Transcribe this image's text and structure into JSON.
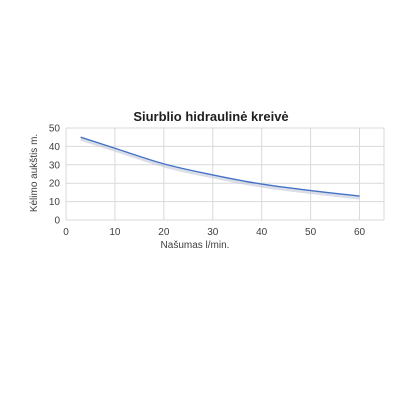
{
  "chart_data": {
    "type": "line",
    "title": "Siurblio hidraulinė kreivė",
    "xlabel": "Našumas l/min.",
    "ylabel": "Kėlimo aukštis m.",
    "xlim": [
      0,
      65
    ],
    "ylim": [
      0,
      50
    ],
    "x_ticks": [
      0,
      10,
      20,
      30,
      40,
      50,
      60
    ],
    "y_ticks": [
      0,
      10,
      20,
      30,
      40,
      50
    ],
    "grid": true,
    "series": [
      {
        "x": [
          3,
          10,
          20,
          30,
          40,
          50,
          60
        ],
        "values": [
          45,
          39,
          30.5,
          24.5,
          19.5,
          16,
          13
        ],
        "color": "#4472c4"
      }
    ]
  }
}
